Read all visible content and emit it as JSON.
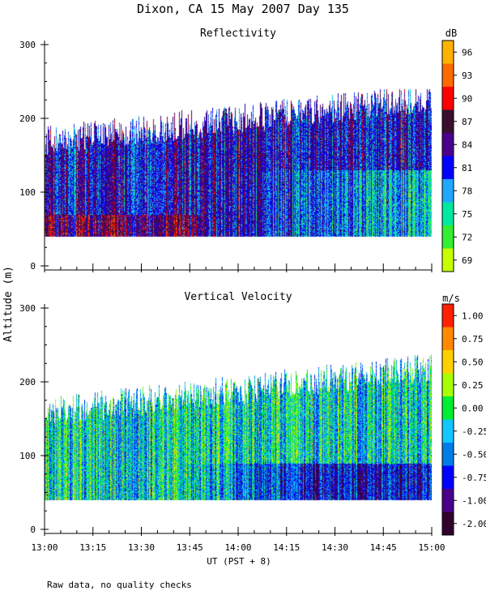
{
  "title": "Dixon, CA 15 May 2007  Day 135",
  "footer_note": "Raw data, no quality checks",
  "y_axis_label": "Altitude (m)",
  "x_axis_label": "UT  (PST + 8)",
  "chart_data": [
    {
      "type": "heatmap",
      "title": "Reflectivity",
      "colorbar_unit": "dB",
      "colorbar_ticks": [
        "96",
        "93",
        "90",
        "87",
        "84",
        "81",
        "78",
        "75",
        "72",
        "69"
      ],
      "colorbar_colors": [
        "#ffb300",
        "#ff6a00",
        "#ff0000",
        "#3a0f2e",
        "#4b008c",
        "#0000ff",
        "#1ea8ff",
        "#00e9a0",
        "#33ee33",
        "#c8ff00"
      ],
      "x_ticks": [
        "13:00",
        "13:15",
        "13:30",
        "13:45",
        "14:00",
        "14:15",
        "14:30",
        "14:45",
        "15:00"
      ],
      "xlim": [
        "13:00",
        "15:00"
      ],
      "y_ticks": [
        "0",
        "100",
        "200",
        "300"
      ],
      "ylim": [
        0,
        300
      ],
      "y_unit": "m",
      "data_altitude_range_m": [
        40,
        240
      ]
    },
    {
      "type": "heatmap",
      "title": "Vertical Velocity",
      "colorbar_unit": "m/s",
      "colorbar_ticks": [
        "1.00",
        "0.75",
        "0.50",
        "0.25",
        "0.00",
        "-0.25",
        "-0.50",
        "-0.75",
        "-1.00",
        "-2.00"
      ],
      "colorbar_colors": [
        "#ff2000",
        "#ff8a00",
        "#ffd000",
        "#a8ff00",
        "#00ee33",
        "#12c7ff",
        "#007ce8",
        "#0000ff",
        "#4b008c",
        "#32002d"
      ],
      "x_ticks": [
        "13:00",
        "13:15",
        "13:30",
        "13:45",
        "14:00",
        "14:15",
        "14:30",
        "14:45",
        "15:00"
      ],
      "xlim": [
        "13:00",
        "15:00"
      ],
      "y_ticks": [
        "0",
        "100",
        "200",
        "300"
      ],
      "ylim": [
        0,
        300
      ],
      "y_unit": "m",
      "data_altitude_range_m": [
        40,
        240
      ]
    }
  ]
}
